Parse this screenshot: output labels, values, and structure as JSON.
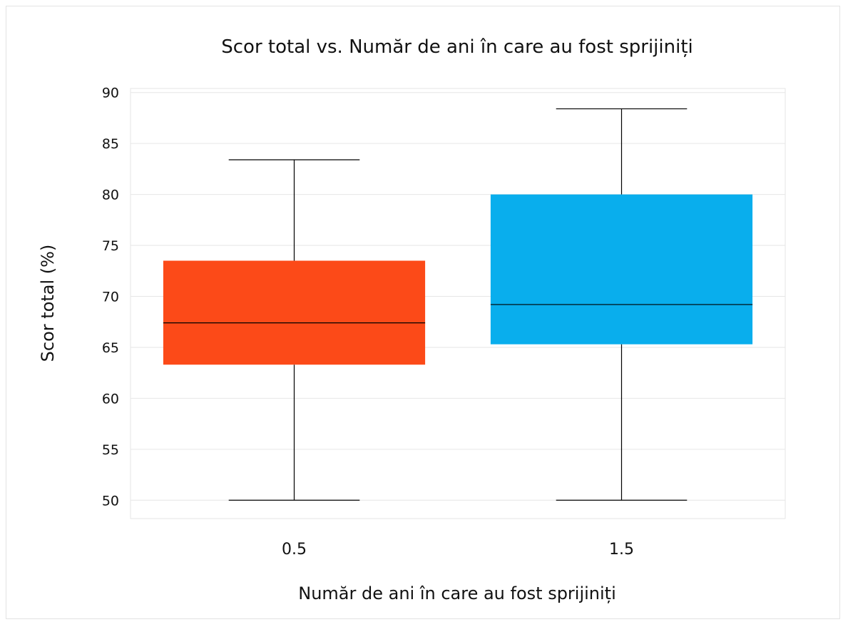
{
  "chart_data": {
    "type": "box",
    "title": "Scor total vs. Număr de ani în care au fost sprijiniți",
    "xlabel": "Număr de ani în care au fost sprijiniți",
    "ylabel": "Scor total (%)",
    "categories": [
      "0.5",
      "1.5"
    ],
    "ylim": [
      48.2,
      90.4
    ],
    "yticks": [
      50,
      55,
      60,
      65,
      70,
      75,
      80,
      85,
      90
    ],
    "grid": true,
    "boxes": [
      {
        "category": "0.5",
        "min": 50.0,
        "q1": 63.3,
        "median": 67.4,
        "q3": 73.5,
        "max": 83.4,
        "color": "#fc4a18"
      },
      {
        "category": "1.5",
        "min": 50.0,
        "q1": 65.3,
        "median": 69.2,
        "q3": 80.0,
        "max": 88.4,
        "color": "#09aeed"
      }
    ]
  }
}
